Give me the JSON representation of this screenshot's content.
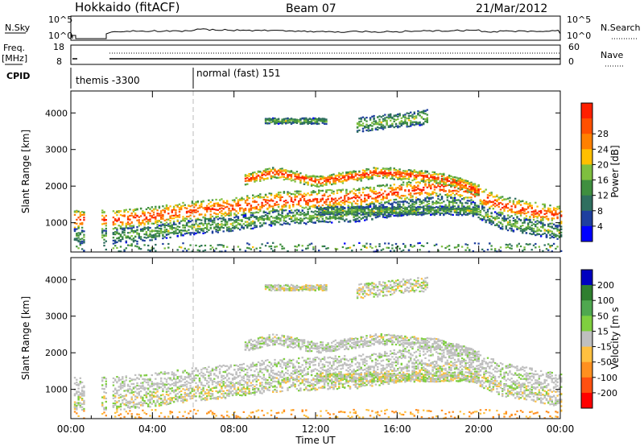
{
  "header": {
    "station": "Hokkaido (fitACF)",
    "beam": "Beam 07",
    "date": "21/Mar/2012"
  },
  "status_panels": {
    "nsky_label": "N.Sky",
    "nsky_ticks": [
      "10^5",
      "10^0"
    ],
    "nsearch_label": "N.Search",
    "nsearch_ticks": [
      "10^5",
      "10^0"
    ],
    "freq_label": "Freq.",
    "freq_unit": "[MHz]",
    "freq_ticks": [
      "18",
      "8"
    ],
    "nave_label": "Nave",
    "nave_ticks": [
      "60",
      "0"
    ],
    "cpid_label": "CPID",
    "cpid_modes": [
      {
        "label": "themis -3300",
        "start_hour": 0
      },
      {
        "label": "normal (fast) 151",
        "start_hour": 6
      }
    ]
  },
  "chart_data": [
    {
      "type": "heatmap",
      "name": "power-panel",
      "ylabel": "Slant Range [km]",
      "yticks": [
        1000,
        2000,
        3000,
        4000
      ],
      "ylim": [
        200,
        4600
      ],
      "xlim": [
        0,
        24
      ],
      "colorbar": {
        "label": "Power [dB]",
        "ticks": [
          "4",
          "8",
          "12",
          "16",
          "20",
          "24",
          "28"
        ],
        "colors": [
          "#0000ff",
          "#1f3f9f",
          "#2f6f5f",
          "#3f8f3f",
          "#7fbf3f",
          "#ffbf00",
          "#ff8000",
          "#ff5000",
          "#ff2000"
        ]
      },
      "features": [
        {
          "band": "main echo",
          "x": [
            2.0,
            4.0,
            6.0,
            8.0,
            10.0,
            12.0,
            14.0,
            16.0,
            18.0,
            19.5,
            21.0,
            24.0
          ],
          "y": [
            1100,
            1200,
            1350,
            1450,
            1600,
            1650,
            1700,
            1850,
            2000,
            1900,
            1500,
            1200
          ]
        },
        {
          "band": "upper echo",
          "x": [
            8.5,
            10.0,
            12.0,
            14.0,
            15.0,
            16.0,
            18.0,
            19.0,
            20.0
          ],
          "y": [
            2200,
            2400,
            2150,
            2300,
            2400,
            2350,
            2250,
            2100,
            1900
          ]
        }
      ]
    },
    {
      "type": "heatmap",
      "name": "velocity-panel",
      "xlabel": "Time UT",
      "ylabel": "Slant Range [km]",
      "xticks": [
        "00:00",
        "04:00",
        "08:00",
        "12:00",
        "16:00",
        "20:00",
        "00:00"
      ],
      "yticks": [
        1000,
        2000,
        3000,
        4000
      ],
      "ylim": [
        200,
        4600
      ],
      "xlim": [
        0,
        24
      ],
      "colorbar": {
        "label": "Velocity [m s",
        "ticks": [
          "200",
          "100",
          "50",
          "15",
          "-15",
          "-50",
          "-100",
          "-200"
        ],
        "colors": [
          "#0000c0",
          "#2f7f2f",
          "#4fa84f",
          "#7fcf3f",
          "#bfbfbf",
          "#ffc040",
          "#ff9020",
          "#ff5010",
          "#ff0000"
        ]
      }
    }
  ]
}
